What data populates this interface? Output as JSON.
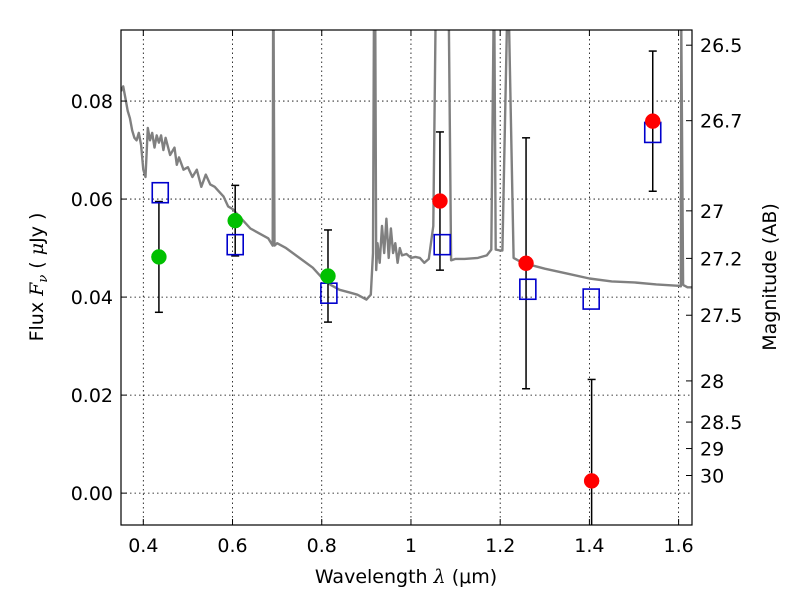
{
  "chart_data": {
    "type": "scatter",
    "title": "",
    "xlabel": "Wavelength  λ (μm)",
    "xlabel_parts": {
      "pre": "Wavelength ",
      "sym": "λ",
      "post": " (μm)"
    },
    "ylabel": "Flux  Fν  ( μJy )",
    "ylabel_parts": {
      "pre": "Flux  ",
      "sym": "F",
      "sub": "ν",
      "mid": "  ( ",
      "mu": "μ",
      "post": "Jy )"
    },
    "y2label": "Magnitude (AB)",
    "xlim": [
      0.35,
      1.63
    ],
    "ylim": [
      -0.0065,
      0.0945
    ],
    "grid": true,
    "x_ticks": [
      0.4,
      0.6,
      0.8,
      1.0,
      1.2,
      1.4,
      1.6
    ],
    "x_tick_labels": [
      "0.4",
      "0.6",
      "0.8",
      "1",
      "1.2",
      "1.4",
      "1.6"
    ],
    "y_ticks": [
      0.0,
      0.02,
      0.04,
      0.06,
      0.08
    ],
    "y_tick_labels": [
      "0.00",
      "0.02",
      "0.04",
      "0.06",
      "0.08"
    ],
    "y2_ticks": [
      {
        "label": "26.5",
        "flux": 0.0914
      },
      {
        "label": "26.7",
        "flux": 0.076
      },
      {
        "label": "27",
        "flux": 0.0576
      },
      {
        "label": "27.2",
        "flux": 0.0479
      },
      {
        "label": "27.5",
        "flux": 0.0363
      },
      {
        "label": "28",
        "flux": 0.0229
      },
      {
        "label": "28.5",
        "flux": 0.0145
      },
      {
        "label": "29",
        "flux": 0.0091
      },
      {
        "label": "30",
        "flux": 0.0036
      }
    ],
    "series": [
      {
        "marker": "circle",
        "color": "#00c000",
        "points": [
          {
            "x": 0.435,
            "y": 0.0482,
            "err": 0.0113
          },
          {
            "x": 0.606,
            "y": 0.0556,
            "err": 0.0072
          },
          {
            "x": 0.814,
            "y": 0.0443,
            "err": 0.0094
          }
        ]
      },
      {
        "marker": "circle",
        "color": "#ff0000",
        "points": [
          {
            "x": 1.065,
            "y": 0.0596,
            "err": 0.0141
          },
          {
            "x": 1.258,
            "y": 0.0469,
            "err": 0.0256
          },
          {
            "x": 1.405,
            "y": 0.0025,
            "err": 0.0207
          },
          {
            "x": 1.542,
            "y": 0.0759,
            "err": 0.0143
          }
        ]
      },
      {
        "marker": "square-open",
        "color": "#0000cc",
        "points": [
          {
            "x": 0.438,
            "y": 0.0613
          },
          {
            "x": 0.606,
            "y": 0.0507
          },
          {
            "x": 0.816,
            "y": 0.0408
          },
          {
            "x": 1.07,
            "y": 0.0507
          },
          {
            "x": 1.262,
            "y": 0.0416
          },
          {
            "x": 1.404,
            "y": 0.0396
          },
          {
            "x": 1.542,
            "y": 0.0736
          }
        ]
      },
      {
        "type": "line",
        "color": "#808080",
        "x": [
          0.35,
          0.355,
          0.36,
          0.365,
          0.37,
          0.375,
          0.38,
          0.385,
          0.39,
          0.395,
          0.4,
          0.405,
          0.41,
          0.415,
          0.42,
          0.425,
          0.43,
          0.435,
          0.44,
          0.445,
          0.45,
          0.46,
          0.47,
          0.475,
          0.48,
          0.49,
          0.5,
          0.51,
          0.52,
          0.53,
          0.54,
          0.55,
          0.56,
          0.57,
          0.58,
          0.59,
          0.6,
          0.62,
          0.64,
          0.66,
          0.68,
          0.69,
          0.691,
          0.692,
          0.694,
          0.7,
          0.72,
          0.75,
          0.78,
          0.8,
          0.82,
          0.84,
          0.86,
          0.88,
          0.9,
          0.91,
          0.915,
          0.917,
          0.918,
          0.919,
          0.92,
          0.922,
          0.925,
          0.93,
          0.935,
          0.94,
          0.945,
          0.95,
          0.955,
          0.96,
          0.965,
          0.97,
          0.975,
          0.98,
          0.99,
          1.0,
          1.01,
          1.02,
          1.03,
          1.04,
          1.05,
          1.055,
          1.06,
          1.065,
          1.07,
          1.075,
          1.08,
          1.085,
          1.09,
          1.1,
          1.12,
          1.15,
          1.17,
          1.18,
          1.185,
          1.186,
          1.187,
          1.19,
          1.2,
          1.205,
          1.215,
          1.218,
          1.22,
          1.23,
          1.25,
          1.3,
          1.35,
          1.4,
          1.45,
          1.5,
          1.55,
          1.6,
          1.605,
          1.606,
          1.61,
          1.62,
          1.63
        ],
        "y": [
          0.082,
          0.083,
          0.0805,
          0.078,
          0.0765,
          0.074,
          0.0725,
          0.072,
          0.0735,
          0.071,
          0.066,
          0.0645,
          0.0745,
          0.072,
          0.0735,
          0.0705,
          0.073,
          0.0715,
          0.073,
          0.07,
          0.0725,
          0.069,
          0.0705,
          0.067,
          0.0685,
          0.066,
          0.0665,
          0.0645,
          0.066,
          0.0625,
          0.065,
          0.063,
          0.0625,
          0.0615,
          0.0605,
          0.0585,
          0.058,
          0.056,
          0.054,
          0.053,
          0.052,
          0.0505,
          0.095,
          0.095,
          0.0505,
          0.051,
          0.05,
          0.048,
          0.046,
          0.044,
          0.0425,
          0.0415,
          0.041,
          0.0405,
          0.0395,
          0.0405,
          0.049,
          0.095,
          0.095,
          0.095,
          0.095,
          0.0455,
          0.051,
          0.047,
          0.0545,
          0.049,
          0.056,
          0.048,
          0.054,
          0.049,
          0.051,
          0.047,
          0.05,
          0.0485,
          0.0488,
          0.048,
          0.0482,
          0.048,
          0.047,
          0.0478,
          0.0545,
          0.095,
          0.095,
          0.095,
          0.095,
          0.095,
          0.095,
          0.095,
          0.0475,
          0.0478,
          0.0478,
          0.048,
          0.0485,
          0.0497,
          0.095,
          0.095,
          0.095,
          0.0497,
          0.0495,
          0.0495,
          0.095,
          0.095,
          0.095,
          0.048,
          0.047,
          0.0458,
          0.0448,
          0.0438,
          0.0432,
          0.043,
          0.0426,
          0.0423,
          0.0422,
          0.095,
          0.0425,
          0.042,
          0.042
        ]
      }
    ]
  }
}
